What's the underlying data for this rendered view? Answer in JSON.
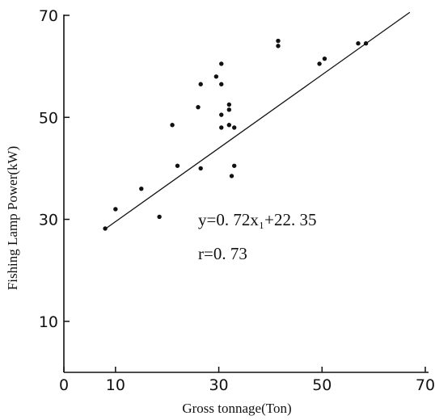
{
  "chart_data": {
    "type": "scatter",
    "xlabel": "Gross tonnage(Ton)",
    "ylabel": "Fishing Lamp Power(kW)",
    "xlim": [
      0,
      70
    ],
    "ylim": [
      0,
      70
    ],
    "x_ticks": [
      "0",
      "10",
      "30",
      "50",
      "70"
    ],
    "y_ticks": [
      "10",
      "30",
      "50",
      "70"
    ],
    "x_tick_values": [
      0,
      10,
      30,
      50,
      70
    ],
    "y_tick_values": [
      10,
      30,
      50,
      70
    ],
    "grid": false,
    "points": [
      {
        "x": 8,
        "y": 28.2
      },
      {
        "x": 10,
        "y": 32
      },
      {
        "x": 15,
        "y": 36
      },
      {
        "x": 18.5,
        "y": 30.5
      },
      {
        "x": 21,
        "y": 48.5
      },
      {
        "x": 22,
        "y": 40.5
      },
      {
        "x": 26,
        "y": 52
      },
      {
        "x": 26.5,
        "y": 56.5
      },
      {
        "x": 26.5,
        "y": 40
      },
      {
        "x": 29.5,
        "y": 58
      },
      {
        "x": 30.5,
        "y": 60.5
      },
      {
        "x": 30.5,
        "y": 56.5
      },
      {
        "x": 30.5,
        "y": 50.5
      },
      {
        "x": 30.5,
        "y": 48
      },
      {
        "x": 32,
        "y": 52.5
      },
      {
        "x": 32,
        "y": 51.5
      },
      {
        "x": 32,
        "y": 48.5
      },
      {
        "x": 32.5,
        "y": 38.5
      },
      {
        "x": 33,
        "y": 48
      },
      {
        "x": 33,
        "y": 40.5
      },
      {
        "x": 41.5,
        "y": 65
      },
      {
        "x": 41.5,
        "y": 64
      },
      {
        "x": 49.5,
        "y": 60.5
      },
      {
        "x": 50.5,
        "y": 61.5
      },
      {
        "x": 57,
        "y": 64.5
      },
      {
        "x": 58.5,
        "y": 64.5
      }
    ],
    "regression": {
      "slope": 0.72,
      "intercept": 22.35,
      "x_start": 8,
      "x_end": 67
    },
    "annotations": [
      "y=0. 72x₁+22. 35",
      "r=0. 73"
    ]
  }
}
